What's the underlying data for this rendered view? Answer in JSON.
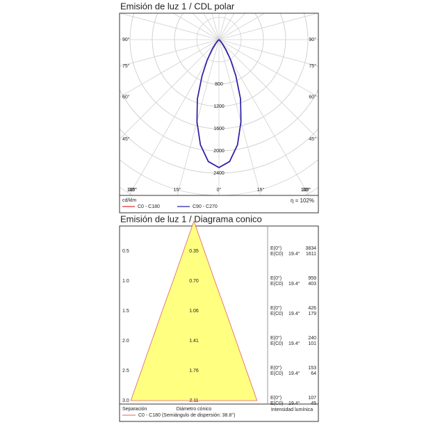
{
  "chart_data": [
    {
      "type": "polar",
      "title": "Emisión de luz 1 / CDL polar",
      "unit": "cd/klm",
      "efficiency": "η = 102%",
      "angles": [
        0,
        5,
        10,
        15,
        20,
        25,
        30,
        35,
        40,
        45,
        50,
        55,
        60,
        65,
        70,
        75,
        80,
        85,
        90
      ],
      "series": [
        {
          "name": "C0 - C180",
          "color": "#e03030",
          "values": [
            2300,
            2199,
            1920,
            1528,
            1136,
            720,
            422,
            218,
            99,
            38,
            13,
            5,
            1,
            0,
            0,
            0,
            0,
            0,
            0
          ]
        },
        {
          "name": "C90 - C270",
          "color": "#2020b0",
          "values": [
            2300,
            2199,
            1920,
            1528,
            1136,
            720,
            422,
            218,
            99,
            38,
            13,
            5,
            1,
            0,
            0,
            0,
            0,
            0,
            0
          ]
        }
      ],
      "rlim": [
        0,
        2400
      ],
      "rticks": [
        800,
        1200,
        1600,
        2000,
        2400
      ],
      "angle_ticks": [
        {
          "value": 0,
          "label": "0°"
        },
        {
          "value": 15,
          "label": "15°"
        },
        {
          "value": 30,
          "label": "30°"
        },
        {
          "value": 45,
          "label": "45°"
        },
        {
          "value": 60,
          "label": "60°"
        },
        {
          "value": 75,
          "label": "75°"
        },
        {
          "value": 90,
          "label": "90°"
        },
        {
          "value": 105,
          "label": "105°"
        }
      ]
    },
    {
      "type": "cone",
      "title": "Emisión de luz 1 / Diagrama conico",
      "color": "#e06060",
      "fill": "#ffff80",
      "heights": [
        0.5,
        {
          "value": 1,
          "label": "1.0"
        },
        1.5,
        {
          "value": 2,
          "label": "2.0"
        },
        2.5,
        {
          "value": 3,
          "label": "3.0"
        }
      ],
      "values": [
        0.35,
        0.7,
        1.06,
        1.41,
        1.76,
        2.11
      ],
      "value_labels": [
        "0.35",
        "0.70",
        "1.06",
        "1.41",
        "1.76",
        "2.11"
      ],
      "half_angle": {
        "value": 19.4,
        "label": "19.4°"
      },
      "series": [
        {
          "name": "E(0°)",
          "values": [
            3834,
            959,
            426,
            240,
            153,
            107
          ]
        },
        {
          "name": "E(C0)",
          "values": [
            1611,
            403,
            179,
            101,
            64,
            45
          ]
        }
      ],
      "y_label": "Separación",
      "x_label": "Diámetro cónico",
      "e_label": "Intensidad lumínica",
      "legend": "C0 - C180 (Semiángulo de dispersión: 38.8°)"
    }
  ]
}
